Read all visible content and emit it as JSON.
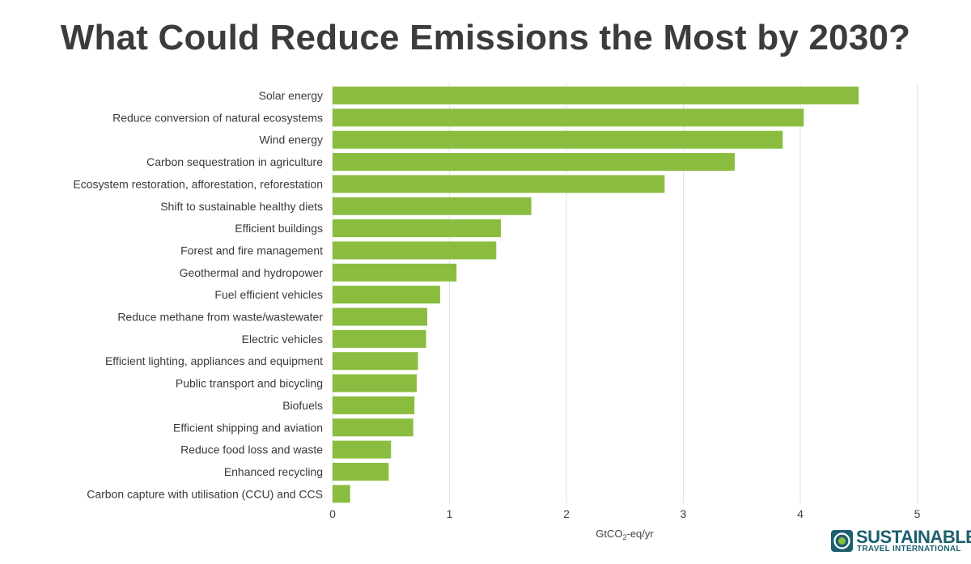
{
  "chart_data": {
    "type": "bar",
    "orientation": "horizontal",
    "title": "What Could Reduce Emissions the Most by 2030?",
    "xlabel_parts": [
      "GtCO",
      "2",
      "-eq/yr"
    ],
    "xlim": [
      0,
      5
    ],
    "xticks": [
      "0",
      "1",
      "2",
      "3",
      "4",
      "5"
    ],
    "grid": true,
    "bar_color": "#8abd3f",
    "categories": [
      "Solar energy",
      "Reduce conversion of natural ecosystems",
      "Wind energy",
      "Carbon sequestration in agriculture",
      "Ecosystem restoration, afforestation, reforestation",
      "Shift to sustainable healthy diets",
      "Efficient buildings",
      "Forest and fire management",
      "Geothermal and hydropower",
      "Fuel efficient vehicles",
      "Reduce methane from waste/wastewater",
      "Electric vehicles",
      "Efficient lighting, appliances and equipment",
      "Public transport and bicycling",
      "Biofuels",
      "Efficient shipping and aviation",
      "Reduce food loss and waste",
      "Enhanced recycling",
      "Carbon capture with utilisation (CCU) and CCS"
    ],
    "values": [
      4.5,
      4.03,
      3.85,
      3.44,
      2.84,
      1.7,
      1.44,
      1.4,
      1.06,
      0.92,
      0.81,
      0.8,
      0.73,
      0.72,
      0.7,
      0.69,
      0.5,
      0.48,
      0.15
    ]
  },
  "logo": {
    "line1": "SUSTAINABLE",
    "line2": "TRAVEL INTERNATIONAL",
    "color": "#1d5f6e",
    "accent": "#8abd3f"
  }
}
